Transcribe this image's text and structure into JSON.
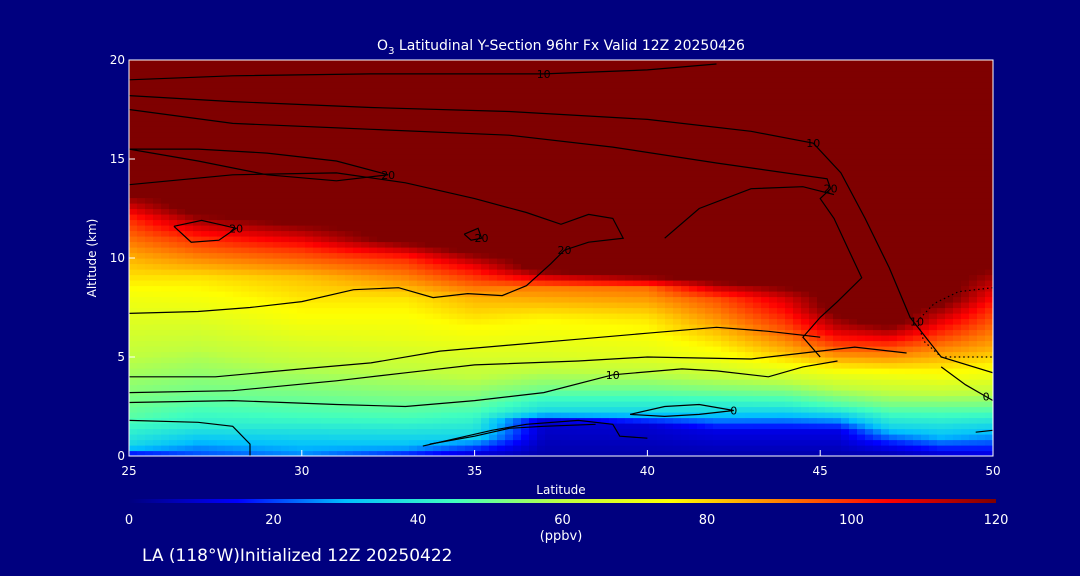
{
  "chart_data": {
    "type": "heatmap",
    "title": {
      "species": "O",
      "subscript": "3",
      "text": " Latitudinal Y-Section 96hr  Fx Valid 12Z 20250426"
    },
    "xlabel": "Latitude",
    "ylabel": "Altitude (km)",
    "xlim": [
      25,
      50
    ],
    "ylim": [
      0,
      20
    ],
    "x_ticks": [
      25,
      30,
      35,
      40,
      45,
      50
    ],
    "y_ticks": [
      0,
      5,
      10,
      15,
      20
    ],
    "colorbar": {
      "label": "(ppbv)",
      "range": [
        0,
        120
      ],
      "ticks": [
        0,
        20,
        40,
        60,
        80,
        100,
        120
      ],
      "colors": [
        "#00007f",
        "#0000ff",
        "#00bfff",
        "#40ffbf",
        "#bfff40",
        "#ffff00",
        "#ff8000",
        "#ff0000",
        "#7f0000"
      ]
    },
    "z_units": "ppbv",
    "grid": false,
    "field_profiles": [
      {
        "lat": 25,
        "layers": [
          [
            0,
            10
          ],
          [
            0.5,
            35
          ],
          [
            2,
            48
          ],
          [
            4,
            56
          ],
          [
            6,
            64
          ],
          [
            8,
            72
          ],
          [
            10,
            84
          ],
          [
            12,
            100
          ],
          [
            13.5,
            125
          ]
        ]
      },
      {
        "lat": 27,
        "layers": [
          [
            0,
            20
          ],
          [
            1.5,
            40
          ],
          [
            3,
            50
          ],
          [
            5,
            58
          ],
          [
            7,
            68
          ],
          [
            9,
            78
          ],
          [
            11,
            100
          ],
          [
            12.5,
            125
          ]
        ]
      },
      {
        "lat": 30,
        "layers": [
          [
            0,
            25
          ],
          [
            2,
            45
          ],
          [
            4,
            56
          ],
          [
            6,
            68
          ],
          [
            7,
            74
          ],
          [
            9,
            82
          ],
          [
            10.5,
            100
          ],
          [
            12,
            125
          ]
        ]
      },
      {
        "lat": 33,
        "layers": [
          [
            0,
            15
          ],
          [
            0.5,
            30
          ],
          [
            2,
            46
          ],
          [
            4,
            58
          ],
          [
            6,
            70
          ],
          [
            8,
            78
          ],
          [
            10,
            100
          ],
          [
            11,
            125
          ]
        ]
      },
      {
        "lat": 35,
        "layers": [
          [
            0,
            8
          ],
          [
            1,
            35
          ],
          [
            2.5,
            48
          ],
          [
            4,
            60
          ],
          [
            6,
            72
          ],
          [
            8,
            84
          ],
          [
            9.5,
            105
          ],
          [
            10.5,
            125
          ]
        ]
      },
      {
        "lat": 37,
        "layers": [
          [
            0,
            5
          ],
          [
            1.8,
            10
          ],
          [
            2.2,
            35
          ],
          [
            3.5,
            52
          ],
          [
            5,
            66
          ],
          [
            7,
            76
          ],
          [
            8.5,
            90
          ],
          [
            9.5,
            125
          ]
        ]
      },
      {
        "lat": 40,
        "layers": [
          [
            0,
            5
          ],
          [
            1.6,
            10
          ],
          [
            2.2,
            35
          ],
          [
            3.5,
            52
          ],
          [
            5,
            68
          ],
          [
            7,
            78
          ],
          [
            8.5,
            92
          ],
          [
            9.2,
            125
          ]
        ]
      },
      {
        "lat": 42,
        "layers": [
          [
            0,
            5
          ],
          [
            1.3,
            12
          ],
          [
            2.3,
            36
          ],
          [
            3.5,
            54
          ],
          [
            5,
            72
          ],
          [
            6.5,
            84
          ],
          [
            8,
            96
          ],
          [
            9,
            125
          ]
        ]
      },
      {
        "lat": 44,
        "layers": [
          [
            0,
            5
          ],
          [
            1.3,
            12
          ],
          [
            2.5,
            40
          ],
          [
            3.8,
            60
          ],
          [
            5,
            80
          ],
          [
            6.5,
            96
          ],
          [
            8,
            110
          ],
          [
            8.8,
            125
          ]
        ]
      },
      {
        "lat": 45.5,
        "layers": [
          [
            0,
            5
          ],
          [
            1.3,
            12
          ],
          [
            2.5,
            45
          ],
          [
            4,
            68
          ],
          [
            5.5,
            95
          ],
          [
            6.5,
            112
          ],
          [
            7.5,
            125
          ]
        ]
      },
      {
        "lat": 47,
        "layers": [
          [
            0,
            5
          ],
          [
            0.6,
            15
          ],
          [
            1.5,
            35
          ],
          [
            2.5,
            50
          ],
          [
            4,
            70
          ],
          [
            5.5,
            96
          ],
          [
            6.8,
            125
          ]
        ]
      },
      {
        "lat": 48.5,
        "layers": [
          [
            0,
            8
          ],
          [
            1,
            30
          ],
          [
            2.5,
            50
          ],
          [
            4,
            72
          ],
          [
            5.5,
            90
          ],
          [
            7,
            110
          ],
          [
            8,
            125
          ]
        ]
      },
      {
        "lat": 50,
        "layers": [
          [
            0,
            10
          ],
          [
            1.2,
            30
          ],
          [
            2.5,
            50
          ],
          [
            4,
            70
          ],
          [
            5.5,
            85
          ],
          [
            7.5,
            100
          ],
          [
            9,
            115
          ],
          [
            10,
            125
          ]
        ]
      }
    ],
    "contours": [
      {
        "label": "10",
        "points": [
          [
            25,
            19.0
          ],
          [
            28,
            19.2
          ],
          [
            32,
            19.3
          ],
          [
            37,
            19.3
          ],
          [
            40,
            19.5
          ],
          [
            42,
            19.8
          ]
        ]
      },
      {
        "label": "10",
        "points": [
          [
            25,
            18.2
          ],
          [
            28,
            17.9
          ],
          [
            32,
            17.6
          ],
          [
            36,
            17.4
          ],
          [
            40,
            17.0
          ],
          [
            43,
            16.4
          ],
          [
            44.8,
            15.8
          ],
          [
            45.6,
            14.3
          ],
          [
            46.3,
            12.0
          ],
          [
            47,
            9.5
          ],
          [
            47.6,
            7.0
          ],
          [
            48.5,
            5.0
          ],
          [
            50,
            4.2
          ]
        ]
      },
      {
        "label": "20",
        "points": [
          [
            25,
            17.5
          ],
          [
            28,
            16.8
          ],
          [
            32,
            16.5
          ],
          [
            36,
            16.2
          ],
          [
            39,
            15.6
          ],
          [
            42,
            14.8
          ],
          [
            44,
            14.3
          ],
          [
            45.2,
            14.0
          ],
          [
            45.3,
            13.5
          ],
          [
            45.0,
            13.0
          ],
          [
            45.4,
            12.0
          ],
          [
            45.8,
            10.5
          ],
          [
            46.2,
            9.0
          ],
          [
            45.5,
            7.8
          ],
          [
            45.0,
            7.0
          ],
          [
            44.5,
            6.0
          ],
          [
            45.0,
            5.0
          ]
        ]
      },
      {
        "label": "20",
        "points": [
          [
            25,
            15.5
          ],
          [
            27,
            15.5
          ],
          [
            29,
            15.3
          ],
          [
            31,
            14.9
          ],
          [
            32.5,
            14.2
          ],
          [
            31,
            13.9
          ],
          [
            29,
            14.2
          ],
          [
            27,
            14.9
          ],
          [
            25,
            15.5
          ]
        ]
      },
      {
        "label": "20",
        "points": [
          [
            25,
            13.7
          ],
          [
            28,
            14.2
          ],
          [
            31,
            14.3
          ],
          [
            33,
            13.8
          ],
          [
            35,
            13.0
          ],
          [
            36.5,
            12.3
          ],
          [
            37.5,
            11.7
          ],
          [
            38.3,
            12.2
          ],
          [
            39,
            12.0
          ],
          [
            39.3,
            11.0
          ],
          [
            38.3,
            10.8
          ],
          [
            37.6,
            10.4
          ],
          [
            37.2,
            9.7
          ],
          [
            36.5,
            8.6
          ],
          [
            35.8,
            8.1
          ],
          [
            34.8,
            8.2
          ],
          [
            33.8,
            8.0
          ],
          [
            32.8,
            8.5
          ],
          [
            31.5,
            8.4
          ],
          [
            30,
            7.8
          ],
          [
            28.5,
            7.5
          ],
          [
            27,
            7.3
          ],
          [
            25,
            7.2
          ]
        ]
      },
      {
        "label": "20",
        "points": [
          [
            34.7,
            11.2
          ],
          [
            35.1,
            11.5
          ],
          [
            35.2,
            11.0
          ],
          [
            34.9,
            10.9
          ],
          [
            34.7,
            11.2
          ]
        ]
      },
      {
        "label": "20",
        "points": [
          [
            26.3,
            11.6
          ],
          [
            27.1,
            11.9
          ],
          [
            27.6,
            11.7
          ],
          [
            28.1,
            11.5
          ],
          [
            27.6,
            10.9
          ],
          [
            26.8,
            10.8
          ],
          [
            26.3,
            11.6
          ]
        ]
      },
      {
        "label": "",
        "points": [
          [
            25,
            4.0
          ],
          [
            27.5,
            4.0
          ],
          [
            30,
            4.4
          ],
          [
            32,
            4.7
          ],
          [
            34,
            5.3
          ],
          [
            36,
            5.6
          ],
          [
            38,
            5.9
          ],
          [
            40,
            6.2
          ],
          [
            42,
            6.5
          ],
          [
            43.5,
            6.3
          ],
          [
            45,
            6.0
          ]
        ]
      },
      {
        "label": "",
        "points": [
          [
            25,
            3.2
          ],
          [
            28,
            3.3
          ],
          [
            31,
            3.8
          ],
          [
            33,
            4.2
          ],
          [
            35,
            4.6
          ],
          [
            38,
            4.8
          ],
          [
            40,
            5.0
          ],
          [
            43,
            4.9
          ],
          [
            46,
            5.5
          ],
          [
            47.5,
            5.2
          ]
        ]
      },
      {
        "label": "10",
        "points": [
          [
            25,
            2.7
          ],
          [
            28,
            2.8
          ],
          [
            31,
            2.6
          ],
          [
            33,
            2.5
          ],
          [
            35,
            2.8
          ],
          [
            37,
            3.2
          ],
          [
            39,
            4.1
          ],
          [
            41,
            4.4
          ],
          [
            42,
            4.3
          ],
          [
            43.5,
            4.0
          ],
          [
            44.5,
            4.5
          ],
          [
            45.5,
            4.8
          ]
        ]
      },
      {
        "label": "",
        "points": [
          [
            25,
            1.8
          ],
          [
            27,
            1.7
          ],
          [
            28,
            1.5
          ],
          [
            28.5,
            0.6
          ],
          [
            28.5,
            0
          ]
        ]
      },
      {
        "label": "",
        "points": [
          [
            33.5,
            0.5
          ],
          [
            35.5,
            1.3
          ],
          [
            36.5,
            1.6
          ],
          [
            38,
            1.8
          ],
          [
            39,
            1.6
          ],
          [
            39.2,
            1.0
          ],
          [
            40,
            0.9
          ]
        ]
      },
      {
        "label": "",
        "points": [
          [
            33.7,
            0.6
          ],
          [
            35,
            1.0
          ],
          [
            36,
            1.4
          ],
          [
            37,
            1.5
          ],
          [
            38.5,
            1.6
          ]
        ]
      },
      {
        "label": "0",
        "points": [
          [
            39.5,
            2.1
          ],
          [
            40.5,
            2.5
          ],
          [
            41.5,
            2.6
          ],
          [
            42.5,
            2.3
          ],
          [
            41.5,
            2.1
          ],
          [
            40.5,
            2.0
          ],
          [
            39.5,
            2.1
          ]
        ]
      },
      {
        "label": "0",
        "points": [
          [
            48.5,
            4.5
          ],
          [
            49.2,
            3.6
          ],
          [
            49.8,
            3.0
          ],
          [
            50,
            2.8
          ]
        ]
      },
      {
        "label": "",
        "points": [
          [
            49.5,
            1.2
          ],
          [
            50,
            1.3
          ]
        ]
      },
      {
        "label": "",
        "points": [
          [
            40.5,
            11.0
          ],
          [
            41.5,
            12.5
          ],
          [
            43.0,
            13.5
          ],
          [
            44.5,
            13.6
          ],
          [
            45.4,
            13.2
          ]
        ]
      }
    ],
    "dotted_contours": [
      {
        "label": "10",
        "points": [
          [
            50,
            8.5
          ],
          [
            49,
            8.3
          ],
          [
            48.3,
            7.7
          ],
          [
            47.8,
            6.8
          ],
          [
            48.0,
            5.8
          ],
          [
            48.5,
            5.0
          ],
          [
            50,
            5.0
          ]
        ]
      }
    ]
  },
  "footer": "LA (118°W)Initialized 12Z 20250422"
}
